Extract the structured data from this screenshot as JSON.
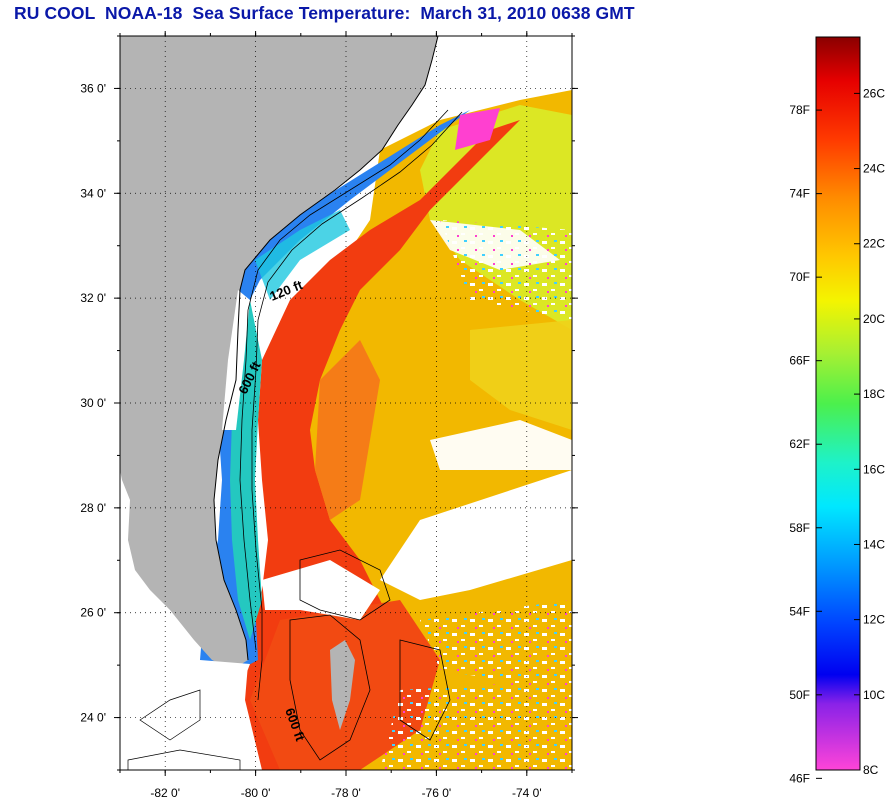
{
  "title": "RU COOL  NOAA-18  Sea Surface Temperature:  March 31, 2010 0638 GMT",
  "map": {
    "lon_range": [
      -83,
      -73
    ],
    "lat_range": [
      23,
      37
    ],
    "lon_ticks": [
      {
        "value": -82,
        "label": "-82 0'"
      },
      {
        "value": -80,
        "label": "-80 0'"
      },
      {
        "value": -78,
        "label": "-78 0'"
      },
      {
        "value": -76,
        "label": "-76 0'"
      },
      {
        "value": -74,
        "label": "-74 0'"
      }
    ],
    "lat_ticks": [
      {
        "value": 36,
        "label": "36 0'"
      },
      {
        "value": 34,
        "label": "34 0'"
      },
      {
        "value": 32,
        "label": "32 0'"
      },
      {
        "value": 30,
        "label": "30 0'"
      },
      {
        "value": 28,
        "label": "28 0'"
      },
      {
        "value": 26,
        "label": "26 0'"
      },
      {
        "value": 24,
        "label": "24 0'"
      }
    ],
    "grid": "dotted",
    "contours": [
      {
        "label": "120 ft"
      },
      {
        "label": "600 ft"
      },
      {
        "label": "600 ft"
      }
    ],
    "colors": {
      "land": "#b4b4b4",
      "cloud": "#ffffff",
      "cold_shelf": "#2a82f0",
      "gulf_stream": "#f23c10",
      "warm_offshore": "#f2b800",
      "cool_yellow": "#d8ee2a"
    }
  },
  "colorbar": {
    "fahrenheit_labels": [
      "78F",
      "74F",
      "70F",
      "66F",
      "62F",
      "58F",
      "54F",
      "50F",
      "46F"
    ],
    "celsius_labels": [
      "26C",
      "24C",
      "22C",
      "20C",
      "18C",
      "16C",
      "14C",
      "12C",
      "10C",
      "8C"
    ],
    "range_c": [
      8,
      27.5
    ],
    "gradient": [
      "#ff44d8",
      "#8a22e8",
      "#0000f0",
      "#0044ff",
      "#0099ff",
      "#00e8ff",
      "#1ef2c8",
      "#4cf04c",
      "#a8f032",
      "#f4f400",
      "#ffc800",
      "#ff8c00",
      "#ff3a00",
      "#e60000",
      "#8a0000"
    ]
  }
}
